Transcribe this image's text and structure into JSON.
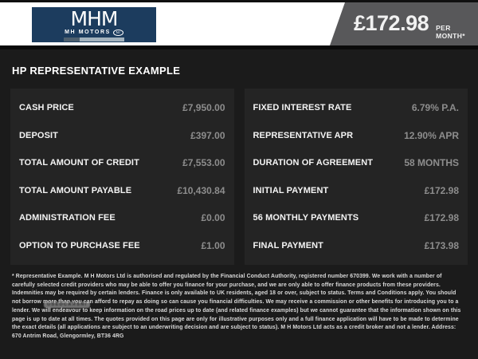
{
  "colors": {
    "page_bg": "#1b1b1b",
    "panel_bg": "#242424",
    "logo_navy": "#1c3c5e",
    "price_banner_gray": "#58585a",
    "label_text": "#f4f4f4",
    "value_text": "#8d8d8d"
  },
  "header": {
    "logo": {
      "monogram": "MHM",
      "name": "MH MOTORS",
      "badge": "NI"
    },
    "price": "£172.98",
    "price_suffix": "PER MONTH*"
  },
  "title": "HP REPRESENTATIVE EXAMPLE",
  "panels": {
    "left": {
      "rows": [
        {
          "label": "CASH PRICE",
          "value": "£7,950.00"
        },
        {
          "label": "DEPOSIT",
          "value": "£397.00"
        },
        {
          "label": "TOTAL AMOUNT OF CREDIT",
          "value": "£7,553.00"
        },
        {
          "label": "TOTAL AMOUNT PAYABLE",
          "value": "£10,430.84"
        },
        {
          "label": "ADMINISTRATION FEE",
          "value": "£0.00"
        },
        {
          "label": "OPTION TO PURCHASE FEE",
          "value": "£1.00"
        }
      ]
    },
    "right": {
      "rows": [
        {
          "label": "FIXED INTEREST RATE",
          "value": "6.79% P.A."
        },
        {
          "label": "REPRESENTATIVE APR",
          "value": "12.90% APR"
        },
        {
          "label": "DURATION OF AGREEMENT",
          "value": "58 MONTHS"
        },
        {
          "label": "INITIAL PAYMENT",
          "value": "£172.98"
        },
        {
          "label": "56 MONTHLY PAYMENTS",
          "value": "£172.98"
        },
        {
          "label": "FINAL PAYMENT",
          "value": "£173.98"
        }
      ]
    }
  },
  "watermark": "USEDCARSNI",
  "disclaimer": "* Representative Example. M H Motors Ltd is authorised and regulated by the Financial Conduct Authority, registered number 670399. We work with a number of carefully selected credit providers who may be able to offer you finance for your purchase, and we are only able to offer finance products from these providers. Indemnities may be required by certain lenders. Finance is only available to UK residents, aged 18 or over, subject to status. Terms and Conditions apply. You should not borrow more than you can afford to repay as doing so can cause you financial difficulties. We may receive a commission or other benefits for introducing you to a lender. We will endeavour to keep information on the road prices up to date (and related finance examples) but we cannot guarantee that the information shown on this page is up to date at all times. The quotes provided on this page are only for illustrative purposes only and a full finance application will have to be made to determine the exact details (all applications are subject to an underwriting decision and are subject to status). M H Motors Ltd acts as a credit broker and not a lender. Address: 670 Antrim Road, Glengormley, BT36 4RG"
}
